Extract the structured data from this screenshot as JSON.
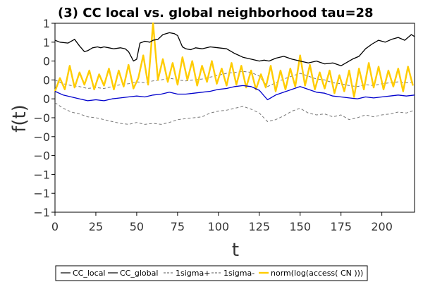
{
  "chart_data": {
    "type": "line",
    "title": "(3) CC local vs. global neighborhood tau=28",
    "xlabel": "t",
    "ylabel": "f(t)",
    "xlim": [
      0,
      220
    ],
    "ylim": [
      -1.0,
      1.0
    ],
    "x_ticks": [
      0,
      25,
      50,
      75,
      100,
      125,
      150,
      175,
      200
    ],
    "y_ticks": [
      {
        "value": 1.0,
        "label": "1"
      },
      {
        "value": 0.8,
        "label": "1"
      },
      {
        "value": 0.6,
        "label": "0"
      },
      {
        "value": 0.4,
        "label": "0"
      },
      {
        "value": 0.2,
        "label": "0"
      },
      {
        "value": 0.0,
        "label": "−0"
      },
      {
        "value": -0.2,
        "label": "−0"
      },
      {
        "value": -0.4,
        "label": "−0"
      },
      {
        "value": -0.6,
        "label": "−1"
      },
      {
        "value": -0.8,
        "label": "−1"
      },
      {
        "value": -1.0,
        "label": "−1"
      }
    ],
    "legend_position": "bottom",
    "series": [
      {
        "name": "CC_local",
        "color": "#000000",
        "style": "solid",
        "x": [
          0,
          3,
          8,
          12,
          15,
          18,
          20,
          23,
          26,
          28,
          30,
          33,
          36,
          40,
          43,
          45,
          48,
          50,
          52,
          55,
          58,
          60,
          63,
          66,
          70,
          73,
          75,
          78,
          80,
          83,
          86,
          90,
          95,
          100,
          105,
          110,
          115,
          120,
          125,
          128,
          131,
          135,
          140,
          145,
          150,
          155,
          160,
          165,
          170,
          175,
          178,
          182,
          186,
          190,
          194,
          198,
          202,
          206,
          210,
          214,
          218,
          220
        ],
        "y": [
          0.82,
          0.8,
          0.79,
          0.83,
          0.76,
          0.7,
          0.71,
          0.74,
          0.75,
          0.74,
          0.75,
          0.74,
          0.73,
          0.74,
          0.73,
          0.7,
          0.6,
          0.62,
          0.79,
          0.81,
          0.8,
          0.82,
          0.83,
          0.88,
          0.9,
          0.89,
          0.87,
          0.75,
          0.73,
          0.72,
          0.74,
          0.73,
          0.75,
          0.74,
          0.73,
          0.68,
          0.64,
          0.62,
          0.6,
          0.61,
          0.6,
          0.63,
          0.65,
          0.62,
          0.6,
          0.58,
          0.6,
          0.57,
          0.58,
          0.55,
          0.58,
          0.62,
          0.65,
          0.73,
          0.78,
          0.82,
          0.8,
          0.83,
          0.85,
          0.82,
          0.88,
          0.86
        ]
      },
      {
        "name": "CC_global",
        "color": "#0000cc",
        "style": "solid",
        "x": [
          0,
          5,
          10,
          15,
          20,
          25,
          30,
          35,
          40,
          45,
          50,
          55,
          60,
          65,
          70,
          75,
          80,
          85,
          90,
          95,
          100,
          105,
          110,
          115,
          120,
          125,
          130,
          135,
          140,
          145,
          150,
          155,
          160,
          165,
          170,
          175,
          180,
          185,
          190,
          195,
          200,
          205,
          210,
          215,
          220
        ],
        "y": [
          0.28,
          0.24,
          0.22,
          0.2,
          0.18,
          0.19,
          0.18,
          0.2,
          0.21,
          0.22,
          0.23,
          0.22,
          0.24,
          0.25,
          0.27,
          0.25,
          0.25,
          0.26,
          0.27,
          0.28,
          0.3,
          0.31,
          0.33,
          0.34,
          0.33,
          0.29,
          0.19,
          0.24,
          0.27,
          0.3,
          0.33,
          0.3,
          0.27,
          0.26,
          0.23,
          0.22,
          0.21,
          0.2,
          0.22,
          0.21,
          0.22,
          0.23,
          0.24,
          0.23,
          0.24
        ]
      },
      {
        "name": "1sigma+",
        "color": "#777777",
        "style": "dashed",
        "x": [
          0,
          5,
          10,
          15,
          20,
          25,
          30,
          35,
          40,
          45,
          50,
          55,
          60,
          65,
          70,
          75,
          80,
          85,
          90,
          95,
          100,
          105,
          110,
          115,
          120,
          125,
          130,
          135,
          140,
          145,
          150,
          155,
          160,
          165,
          170,
          175,
          180,
          185,
          190,
          195,
          200,
          205,
          210,
          215,
          220
        ],
        "y": [
          0.4,
          0.36,
          0.34,
          0.33,
          0.31,
          0.32,
          0.31,
          0.33,
          0.35,
          0.36,
          0.38,
          0.37,
          0.39,
          0.4,
          0.42,
          0.4,
          0.39,
          0.4,
          0.41,
          0.43,
          0.45,
          0.47,
          0.48,
          0.49,
          0.48,
          0.44,
          0.33,
          0.37,
          0.41,
          0.44,
          0.47,
          0.44,
          0.41,
          0.4,
          0.37,
          0.36,
          0.34,
          0.33,
          0.35,
          0.34,
          0.36,
          0.37,
          0.38,
          0.37,
          0.38
        ]
      },
      {
        "name": "1sigma-",
        "color": "#777777",
        "style": "dashed",
        "x": [
          0,
          5,
          10,
          15,
          20,
          25,
          30,
          35,
          40,
          45,
          50,
          55,
          60,
          65,
          70,
          75,
          80,
          85,
          90,
          95,
          100,
          105,
          110,
          115,
          120,
          125,
          130,
          135,
          140,
          145,
          150,
          155,
          160,
          165,
          170,
          175,
          180,
          185,
          190,
          195,
          200,
          205,
          210,
          215,
          220
        ],
        "y": [
          0.16,
          0.1,
          0.06,
          0.04,
          0.01,
          0.0,
          -0.02,
          -0.04,
          -0.06,
          -0.07,
          -0.05,
          -0.07,
          -0.06,
          -0.07,
          -0.05,
          -0.02,
          -0.01,
          0.0,
          0.01,
          0.05,
          0.07,
          0.08,
          0.1,
          0.12,
          0.09,
          0.05,
          -0.04,
          -0.02,
          0.02,
          0.07,
          0.1,
          0.05,
          0.03,
          0.04,
          0.01,
          0.03,
          -0.02,
          0.0,
          0.03,
          0.01,
          0.03,
          0.04,
          0.06,
          0.05,
          0.08
        ]
      },
      {
        "name": "norm(log(access( CN )))",
        "color": "#ffcc00",
        "style": "solid",
        "x": [
          0,
          3,
          6,
          9,
          12,
          15,
          18,
          21,
          24,
          27,
          30,
          33,
          36,
          39,
          42,
          45,
          48,
          51,
          54,
          57,
          60,
          63,
          66,
          69,
          72,
          75,
          78,
          81,
          84,
          87,
          90,
          93,
          96,
          99,
          102,
          105,
          108,
          111,
          114,
          117,
          120,
          123,
          126,
          129,
          132,
          135,
          138,
          141,
          144,
          147,
          150,
          153,
          156,
          159,
          162,
          165,
          168,
          171,
          174,
          177,
          180,
          183,
          186,
          189,
          192,
          195,
          198,
          201,
          204,
          207,
          210,
          213,
          216,
          219
        ],
        "y": [
          0.28,
          0.42,
          0.3,
          0.55,
          0.32,
          0.48,
          0.35,
          0.5,
          0.3,
          0.46,
          0.34,
          0.52,
          0.3,
          0.5,
          0.33,
          0.56,
          0.31,
          0.42,
          0.66,
          0.35,
          1.0,
          0.4,
          0.62,
          0.38,
          0.58,
          0.35,
          0.64,
          0.4,
          0.6,
          0.34,
          0.55,
          0.38,
          0.6,
          0.36,
          0.52,
          0.34,
          0.58,
          0.35,
          0.55,
          0.32,
          0.5,
          0.3,
          0.46,
          0.32,
          0.55,
          0.28,
          0.5,
          0.3,
          0.52,
          0.33,
          0.66,
          0.34,
          0.56,
          0.3,
          0.48,
          0.31,
          0.5,
          0.26,
          0.45,
          0.28,
          0.5,
          0.22,
          0.52,
          0.3,
          0.58,
          0.32,
          0.54,
          0.3,
          0.5,
          0.33,
          0.52,
          0.28,
          0.54,
          0.34
        ]
      }
    ]
  }
}
